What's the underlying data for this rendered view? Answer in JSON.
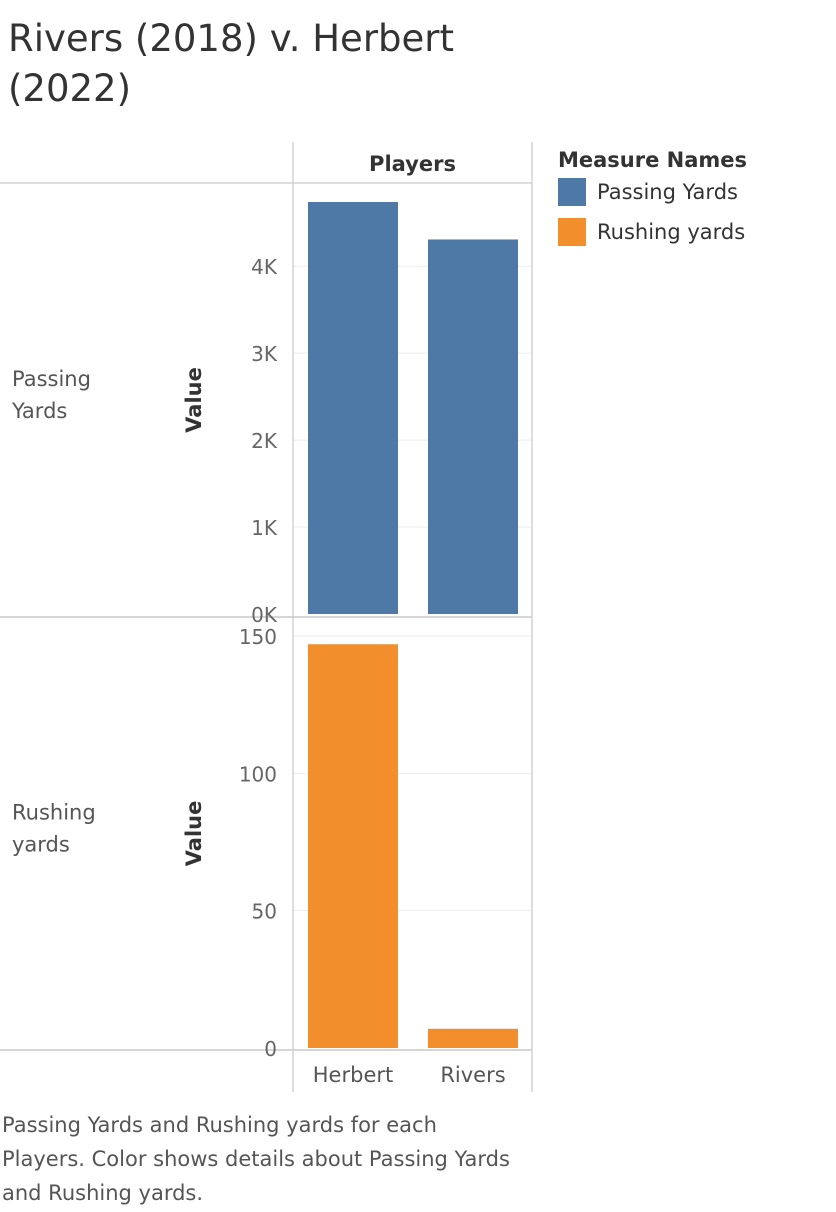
{
  "title": "Rivers (2018) v. Herbert (2022)",
  "caption": "Passing Yards and Rushing yards for each Players.  Color shows details about Passing Yards and Rushing yards.",
  "legend": {
    "title": "Measure Names",
    "items": [
      {
        "label": "Passing Yards",
        "color": "#4e79a7"
      },
      {
        "label": "Rushing yards",
        "color": "#f28e2b"
      }
    ]
  },
  "chart_data": {
    "type": "bar",
    "column_header": "Players",
    "categories": [
      "Herbert",
      "Rivers"
    ],
    "panels": [
      {
        "row_label": "Passing Yards",
        "ylabel": "Value",
        "color": "#4e79a7",
        "values": [
          4739,
          4308
        ],
        "ticks": [
          0,
          1000,
          2000,
          3000,
          4000
        ],
        "tick_labels": [
          "0K",
          "1K",
          "2K",
          "3K",
          "4K"
        ],
        "ylim": [
          0,
          4739
        ]
      },
      {
        "row_label": "Rushing yards",
        "ylabel": "Value",
        "color": "#f28e2b",
        "values": [
          147,
          7
        ],
        "ticks": [
          0,
          50,
          100,
          150
        ],
        "tick_labels": [
          "0",
          "50",
          "100",
          "150"
        ],
        "ylim": [
          0,
          150
        ]
      }
    ]
  }
}
